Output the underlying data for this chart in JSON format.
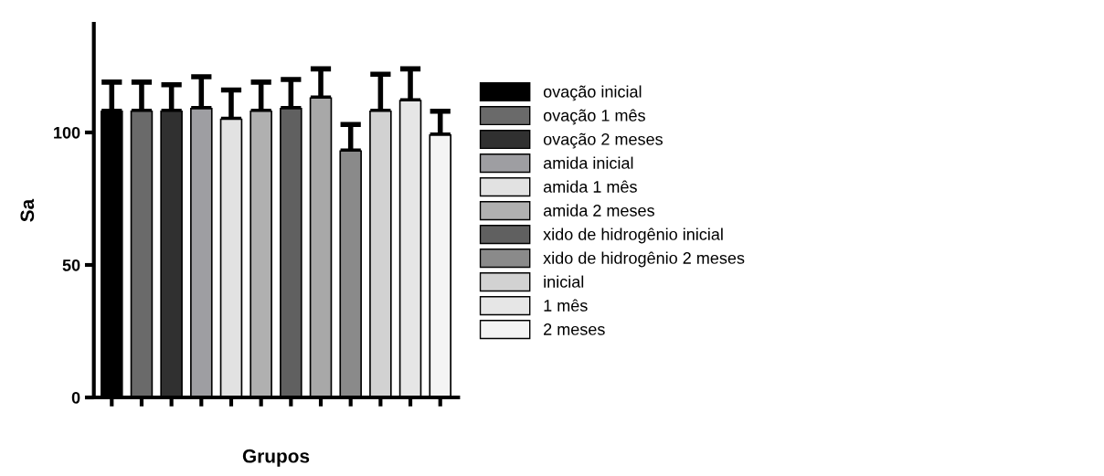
{
  "chart_data": {
    "type": "bar",
    "xlabel": "Grupos",
    "ylabel": "Sa",
    "categories": [
      null,
      null,
      null,
      null,
      null,
      null,
      null,
      null,
      null,
      null,
      null,
      null
    ],
    "series": [
      {
        "name": "ovação inicial",
        "color": "#000000",
        "values": [
          108,
          null,
          null,
          null,
          null,
          null,
          null,
          null,
          null,
          null,
          null,
          null
        ],
        "errors": [
          [
            108,
            119
          ],
          null,
          null,
          null,
          null,
          null,
          null,
          null,
          null,
          null,
          null,
          null
        ]
      },
      {
        "name": "ovação 1 mês",
        "color": "#6a6a6a",
        "values": [
          null,
          108,
          null,
          null,
          null,
          null,
          null,
          null,
          null,
          null,
          null,
          null
        ],
        "errors": [
          null,
          [
            108,
            119
          ],
          null,
          null,
          null,
          null,
          null,
          null,
          null,
          null,
          null,
          null
        ]
      },
      {
        "name": "ovação 2 meses",
        "color": "#303030",
        "values": [
          null,
          null,
          108,
          null,
          null,
          null,
          null,
          null,
          null,
          null,
          null,
          null
        ],
        "errors": [
          null,
          null,
          [
            108,
            118
          ],
          null,
          null,
          null,
          null,
          null,
          null,
          null,
          null,
          null
        ]
      },
      {
        "name": "amida inicial",
        "color": "#9e9ea2",
        "values": [
          null,
          null,
          null,
          109,
          null,
          null,
          null,
          null,
          null,
          null,
          null,
          null
        ],
        "errors": [
          null,
          null,
          null,
          [
            109,
            121
          ],
          null,
          null,
          null,
          null,
          null,
          null,
          null,
          null
        ]
      },
      {
        "name": "amida 1 mês",
        "color": "#e2e2e2",
        "values": [
          null,
          null,
          null,
          null,
          105,
          null,
          null,
          null,
          null,
          null,
          null,
          null
        ],
        "errors": [
          null,
          null,
          null,
          null,
          [
            105,
            116
          ],
          null,
          null,
          null,
          null,
          null,
          null,
          null
        ]
      },
      {
        "name": "amida 2 meses",
        "color": "#b0b0b0",
        "values": [
          null,
          null,
          null,
          null,
          null,
          108,
          null,
          null,
          null,
          null,
          null,
          null
        ],
        "errors": [
          null,
          null,
          null,
          null,
          null,
          [
            108,
            119
          ],
          null,
          null,
          null,
          null,
          null,
          null
        ]
      },
      {
        "name": "xido de hidrogênio inicial",
        "color": "#606060",
        "values": [
          null,
          null,
          null,
          null,
          null,
          null,
          109,
          null,
          null,
          null,
          null,
          null
        ],
        "errors": [
          null,
          null,
          null,
          null,
          null,
          null,
          [
            109,
            120
          ],
          null,
          null,
          null,
          null,
          null
        ]
      },
      {
        "color": "#a8a8a8",
        "values": [
          null,
          null,
          null,
          null,
          null,
          null,
          null,
          113,
          null,
          null,
          null,
          null
        ],
        "errors": [
          null,
          null,
          null,
          null,
          null,
          null,
          null,
          [
            113,
            124
          ],
          null,
          null,
          null,
          null
        ]
      },
      {
        "name": "xido de hidrogênio 2 meses",
        "color": "#8a8a8a",
        "values": [
          null,
          null,
          null,
          null,
          null,
          null,
          null,
          null,
          93,
          null,
          null,
          null
        ],
        "errors": [
          null,
          null,
          null,
          null,
          null,
          null,
          null,
          null,
          [
            93,
            103
          ],
          null,
          null,
          null
        ]
      },
      {
        "name": "inicial",
        "color": "#d2d2d2",
        "values": [
          null,
          null,
          null,
          null,
          null,
          null,
          null,
          null,
          null,
          108,
          null,
          null
        ],
        "errors": [
          null,
          null,
          null,
          null,
          null,
          null,
          null,
          null,
          null,
          [
            108,
            122
          ],
          null,
          null
        ]
      },
      {
        "name": "1 mês",
        "color": "#e6e6e6",
        "values": [
          null,
          null,
          null,
          null,
          null,
          null,
          null,
          null,
          null,
          null,
          112,
          null
        ],
        "errors": [
          null,
          null,
          null,
          null,
          null,
          null,
          null,
          null,
          null,
          null,
          [
            112,
            124
          ],
          null
        ]
      },
      {
        "name": "2 meses",
        "color": "#f4f4f4",
        "values": [
          null,
          null,
          null,
          null,
          null,
          null,
          null,
          null,
          null,
          null,
          null,
          99
        ],
        "errors": [
          null,
          null,
          null,
          null,
          null,
          null,
          null,
          null,
          null,
          null,
          null,
          [
            99,
            108
          ]
        ]
      }
    ],
    "ylim": [
      0,
      141
    ],
    "yticks": [
      0,
      50,
      100
    ],
    "legend": "right"
  }
}
